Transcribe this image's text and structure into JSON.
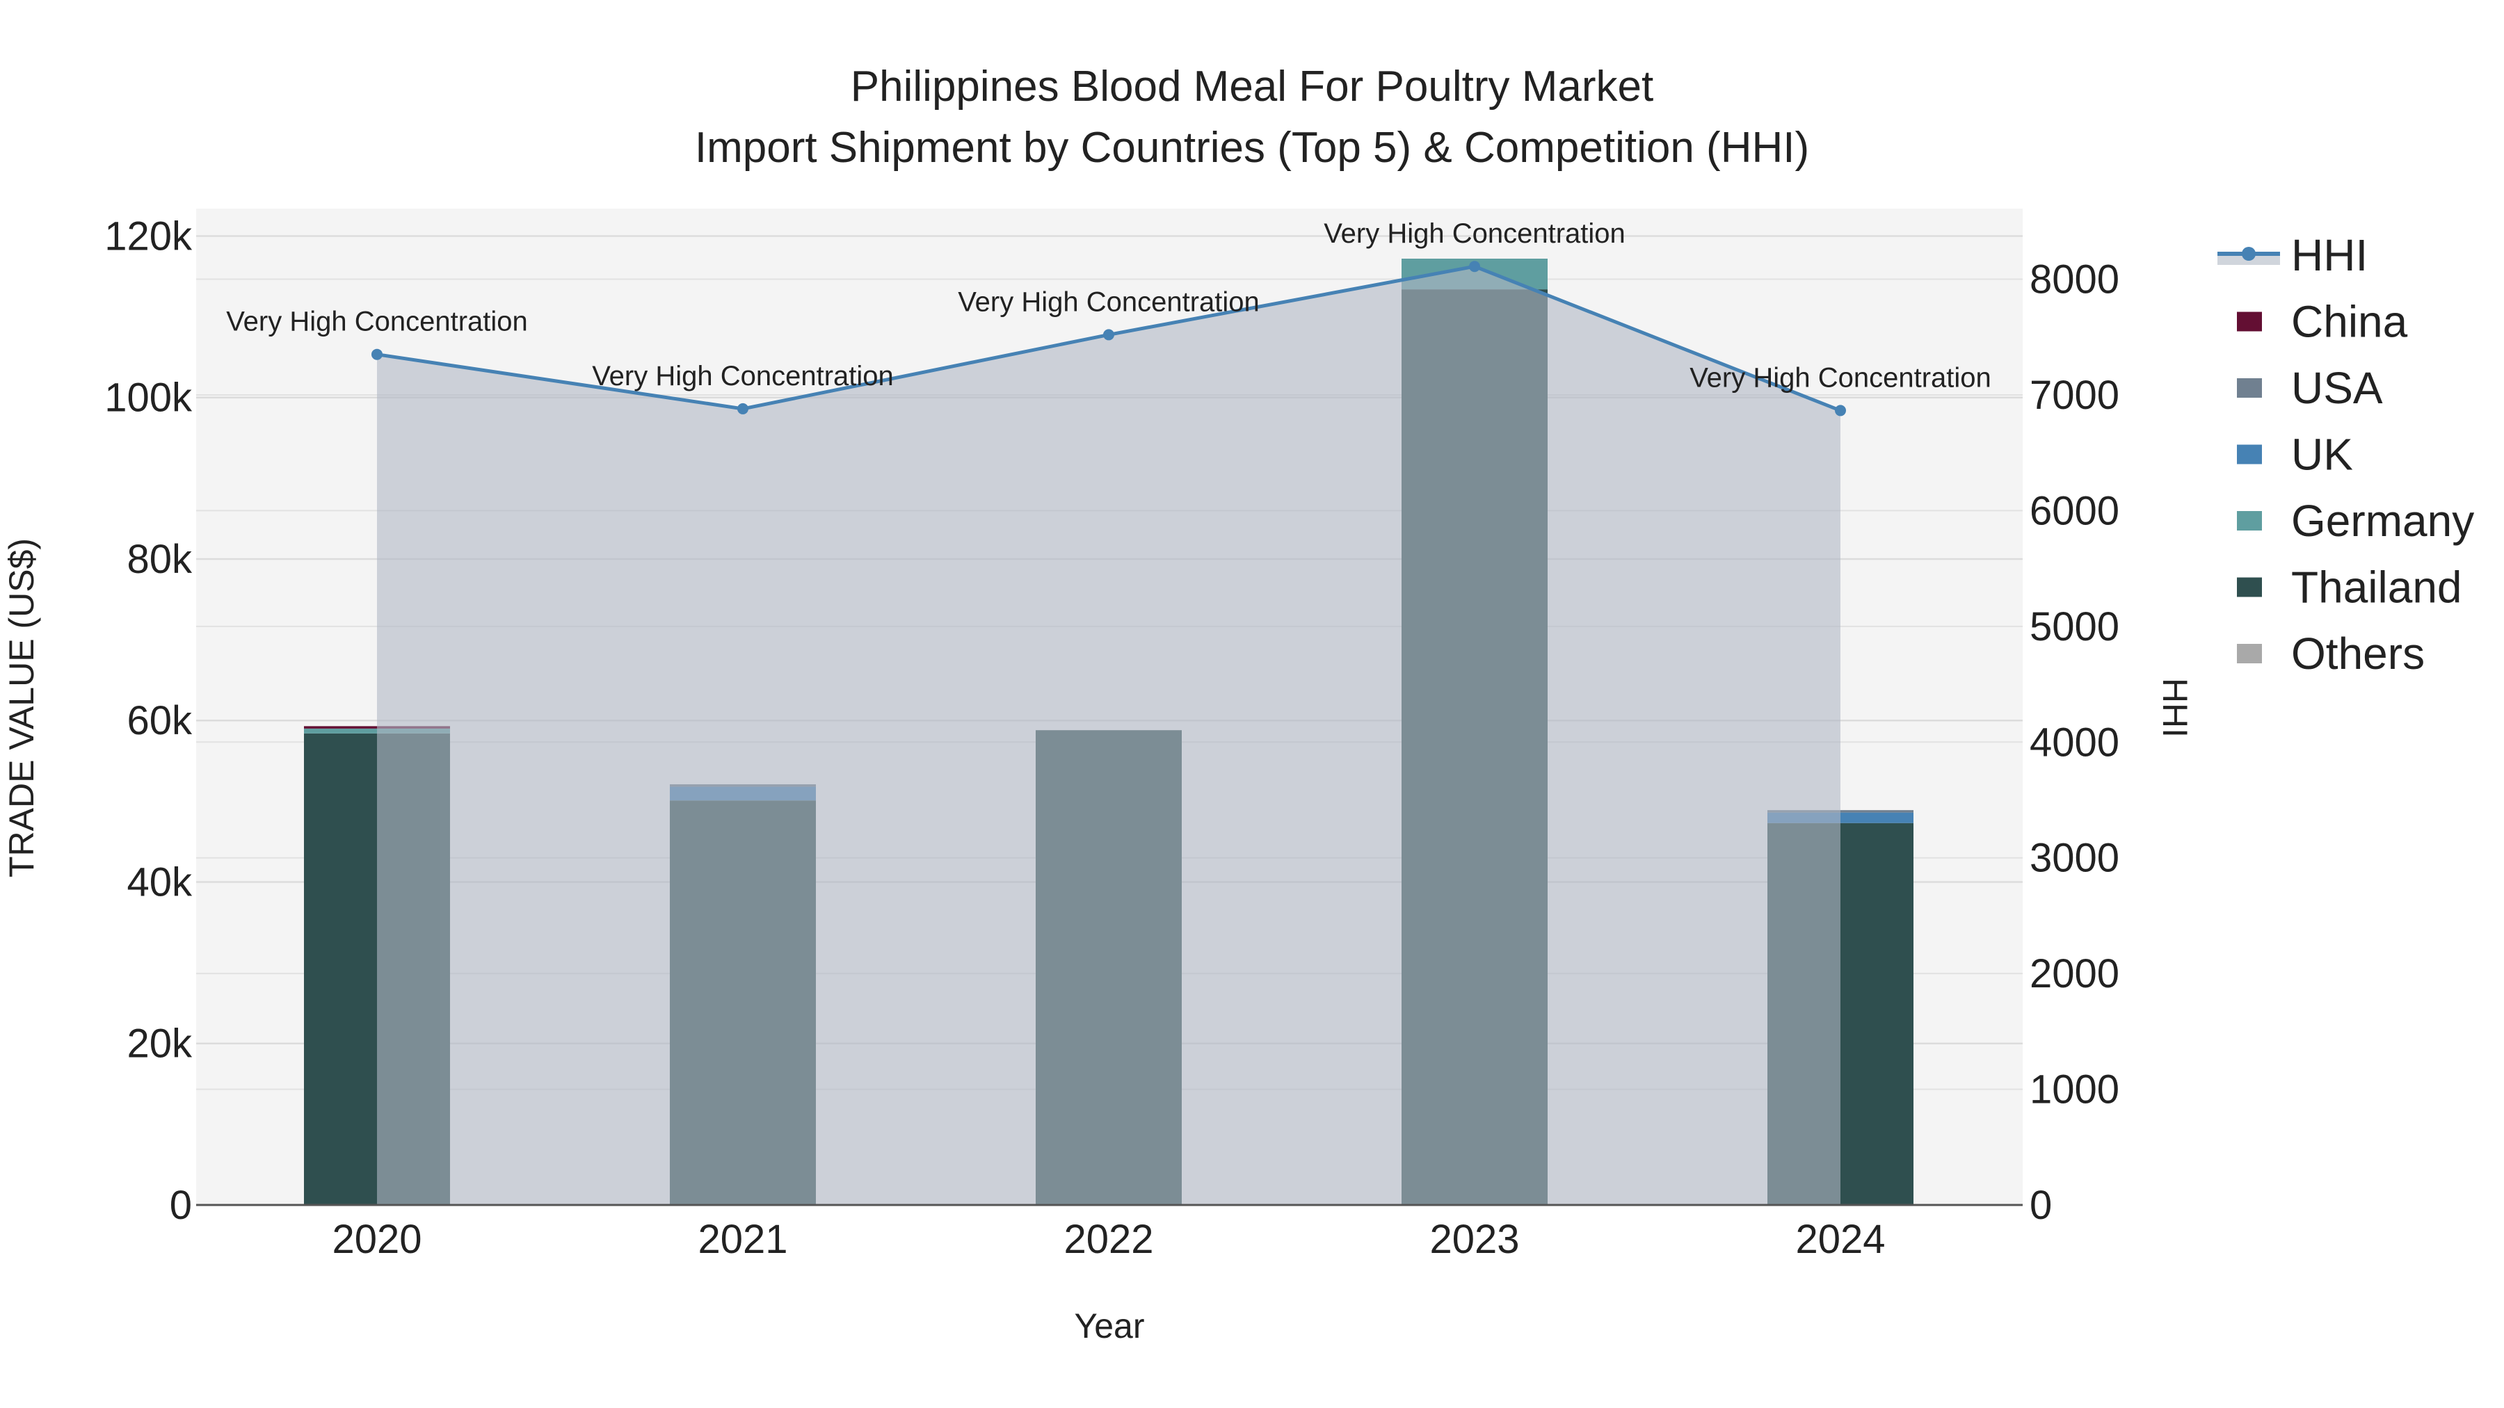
{
  "chart_data": {
    "type": "bar",
    "title": "Philippines Blood Meal For Poultry Market",
    "subtitle": "Import Shipment by Countries (Top 5) & Competition (HHI)",
    "xlabel": "Year",
    "ylabel": "TRADE VALUE (US$)",
    "y2label": "HHI",
    "categories": [
      "2020",
      "2021",
      "2022",
      "2023",
      "2024"
    ],
    "ylim": [
      0,
      123400
    ],
    "y2lim": [
      0,
      8610
    ],
    "yticks": [
      0,
      20000,
      40000,
      60000,
      80000,
      100000,
      120000
    ],
    "ytick_labels": [
      "0",
      "20k",
      "40k",
      "60k",
      "80k",
      "100k",
      "120k"
    ],
    "y2ticks": [
      0,
      1000,
      2000,
      3000,
      4000,
      5000,
      6000,
      7000,
      8000
    ],
    "y2tick_labels": [
      "0",
      "1000",
      "2000",
      "3000",
      "4000",
      "5000",
      "6000",
      "7000",
      "8000"
    ],
    "grid": true,
    "legend_position": "right",
    "series": [
      {
        "name": "Thailand",
        "color": "#2f4f4f",
        "values": [
          58400,
          50100,
          58800,
          113400,
          47300
        ]
      },
      {
        "name": "Germany",
        "color": "#5f9ea0",
        "values": [
          600,
          0,
          0,
          3800,
          0
        ]
      },
      {
        "name": "UK",
        "color": "#4682b4",
        "values": [
          0,
          1700,
          0,
          0,
          1300
        ]
      },
      {
        "name": "USA",
        "color": "#708090",
        "values": [
          0,
          300,
          0,
          0,
          300
        ]
      },
      {
        "name": "China",
        "color": "#630f33",
        "values": [
          300,
          0,
          0,
          0,
          0
        ]
      },
      {
        "name": "Others",
        "color": "#a9a9a9",
        "values": [
          0,
          0,
          0,
          0,
          0
        ]
      }
    ],
    "hhi": {
      "name": "HHI",
      "color": "#4682b4",
      "fill": "#c4c9d2",
      "values": [
        7350,
        6880,
        7520,
        8110,
        6865
      ],
      "annotations": [
        "Very High Concentration",
        "Very High Concentration",
        "Very High Concentration",
        "Very High Concentration",
        "Very High Concentration"
      ]
    },
    "legend": [
      "HHI",
      "China",
      "USA",
      "UK",
      "Germany",
      "Thailand",
      "Others"
    ]
  }
}
